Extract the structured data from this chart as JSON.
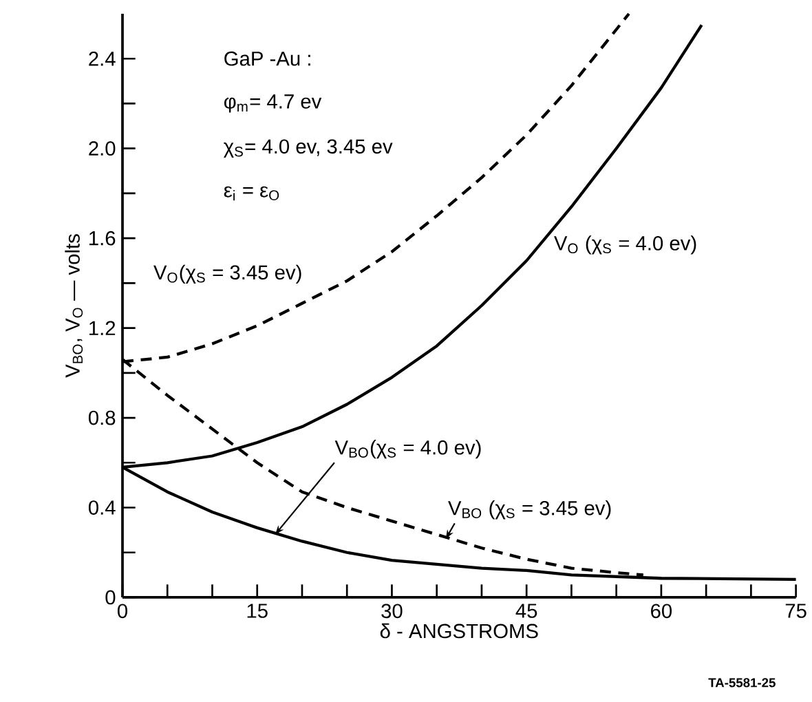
{
  "chart_data": {
    "type": "line",
    "xlabel": "δ - ANGSTROMS",
    "ylabel": "V$_{BO}$, V$_{O}$ — volts",
    "xlim": [
      0,
      75
    ],
    "ylim": [
      0,
      2.6
    ],
    "xticks": [
      0,
      {
        "value": 5,
        "label": null
      },
      {
        "value": 10,
        "label": null
      },
      15,
      {
        "value": 20,
        "label": null
      },
      {
        "value": 25,
        "label": null
      },
      30,
      {
        "value": 35,
        "label": null
      },
      {
        "value": 40,
        "label": null
      },
      45,
      {
        "value": 50,
        "label": null
      },
      {
        "value": 55,
        "label": null
      },
      60,
      {
        "value": 65,
        "label": null
      },
      {
        "value": 70,
        "label": null
      },
      75
    ],
    "yticks": [
      0,
      {
        "value": 0.2,
        "label": null
      },
      0.4,
      {
        "value": 0.6,
        "label": null
      },
      0.8,
      {
        "value": 1.0,
        "label": null
      },
      1.2,
      {
        "value": 1.4,
        "label": null
      },
      1.6,
      {
        "value": 1.8,
        "label": null
      },
      {
        "value": 2.0,
        "label": "2.0"
      },
      {
        "value": 2.2,
        "label": null
      },
      2.4
    ],
    "series": [
      {
        "color": "#000000",
        "line_style": "dashed",
        "x": [
          0,
          5,
          10,
          15,
          20,
          25,
          30,
          35,
          40,
          45,
          50,
          56.4
        ],
        "values": [
          1.05,
          1.07,
          1.13,
          1.21,
          1.31,
          1.41,
          1.54,
          1.7,
          1.87,
          2.06,
          2.28,
          2.6
        ]
      },
      {
        "color": "#000000",
        "line_style": "solid",
        "x": [
          0,
          5,
          10,
          15,
          20,
          25,
          30,
          35,
          40,
          45,
          50,
          55,
          60,
          64.5
        ],
        "values": [
          0.58,
          0.6,
          0.63,
          0.69,
          0.76,
          0.86,
          0.98,
          1.12,
          1.3,
          1.5,
          1.74,
          2.0,
          2.27,
          2.55
        ]
      },
      {
        "color": "#000000",
        "line_style": "dashed",
        "x": [
          0,
          5,
          10,
          15,
          20,
          25,
          30,
          35,
          40,
          45,
          50,
          55,
          58
        ],
        "values": [
          1.06,
          0.9,
          0.75,
          0.6,
          0.47,
          0.4,
          0.34,
          0.28,
          0.22,
          0.17,
          0.13,
          0.11,
          0.1
        ]
      },
      {
        "color": "#000000",
        "line_style": "solid",
        "x": [
          0,
          5,
          10,
          15,
          20,
          25,
          30,
          40,
          45,
          50,
          60,
          75
        ],
        "values": [
          0.58,
          0.47,
          0.38,
          0.31,
          0.25,
          0.2,
          0.165,
          0.13,
          0.12,
          0.1,
          0.085,
          0.08
        ]
      }
    ],
    "annotations": [
      "GaP -Au :",
      "φ$_{m}$= 4.7 ev",
      "χ$_{S}$= 4.0 ev, 3.45 ev",
      "ε$_{i}$ = ε$_{O}$",
      "V$_{O}$(χ$_{S}$ = 3.45 ev)",
      "V$_{O}$ (χ$_{S}$ = 4.0 ev)",
      {
        "text": "V$_{BO}$(χ$_{S}$ = 4.0 ev)",
        "x": 17,
        "y": 0.28
      },
      {
        "text": "V$_{BO}$ (χ$_{S}$ = 3.45 ev)",
        "x": 36,
        "y": 0.26
      },
      "TA-5581-25"
    ]
  }
}
